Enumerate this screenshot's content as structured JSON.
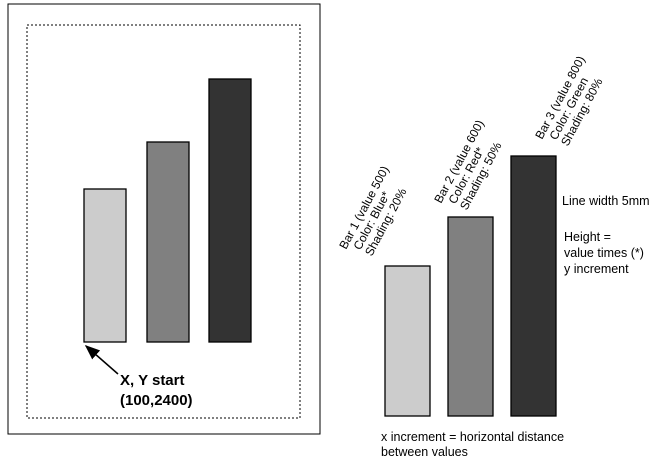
{
  "left_panel": {
    "start_label_line1": "X, Y start",
    "start_label_line2": "(100,2400)"
  },
  "bars": [
    {
      "name_value": "Bar 1 (value 500)",
      "color_line": "Color:  Blue*",
      "shading_line": "Shading:  20%",
      "value": 500,
      "shading_percent": 20,
      "fill": "#cccccc"
    },
    {
      "name_value": "Bar 2 (value 600)",
      "color_line": "Color:  Red*",
      "shading_line": "Shading:  50%",
      "value": 600,
      "shading_percent": 50,
      "fill": "#808080"
    },
    {
      "name_value": "Bar 3 (value 800)",
      "color_line": "Color:  Green",
      "shading_line": "Shading:  80%",
      "value": 800,
      "shading_percent": 80,
      "fill": "#333333"
    }
  ],
  "annotations": {
    "line_width": "Line width 5mm",
    "height_line1": "Height =",
    "height_line2": "value times (*)",
    "height_line3": "y increment",
    "x_increment_line1": "x increment = horizontal distance",
    "x_increment_line2": "between values"
  }
}
